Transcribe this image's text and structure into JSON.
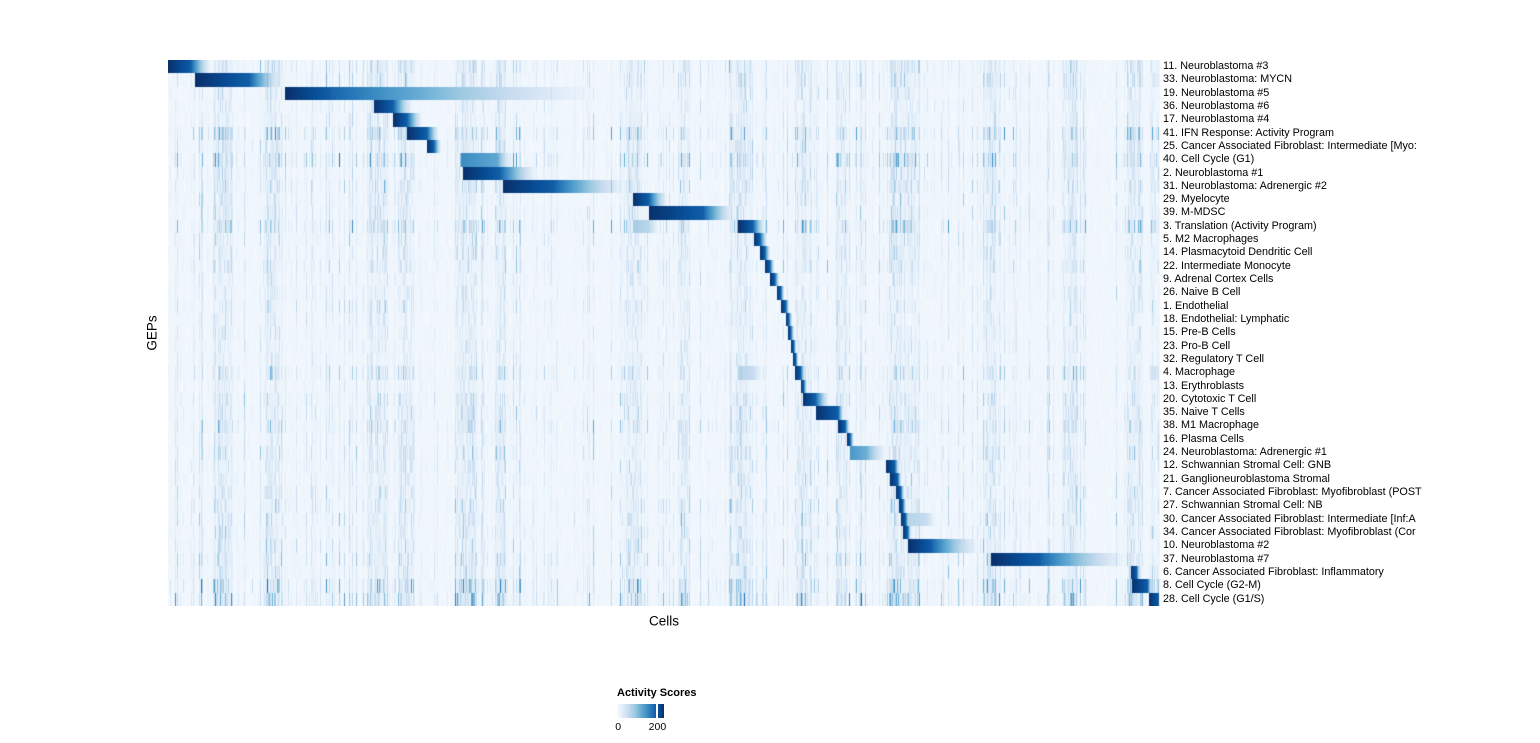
{
  "chart_data": {
    "type": "heatmap",
    "xlabel": "Cells",
    "ylabel": "GEPs",
    "legend": {
      "title": "Activity Scores",
      "min_label": "0",
      "tick_label": "200",
      "tick_pos": 0.86,
      "range_shown": [
        0,
        200
      ]
    },
    "color_low": "#F7FBFF",
    "color_high": "#08306B",
    "ramp": [
      "#F7FBFF",
      "#DEEBF7",
      "#C6DBEF",
      "#9ECAE1",
      "#6BAED6",
      "#4292C6",
      "#2171B5",
      "#08519C",
      "#08306B"
    ],
    "grid": false,
    "rows": [
      {
        "label": "11. Neuroblastoma #3",
        "core": [
          0.0,
          0.023
        ],
        "tail": 0.044,
        "intensity": 1,
        "noise": 0.3
      },
      {
        "label": "33. Neuroblastoma: MYCN",
        "core": [
          0.027,
          0.082
        ],
        "tail": 0.118,
        "intensity": 1,
        "noise": 0.3
      },
      {
        "label": "19. Neuroblastoma #5",
        "core": [
          0.118,
          0.164
        ],
        "tail": 0.455,
        "intensity": 1,
        "noise": 0.25
      },
      {
        "label": "36. Neuroblastoma #6",
        "core": [
          0.207,
          0.227
        ],
        "tail": 0.247,
        "intensity": 1,
        "noise": 0.22
      },
      {
        "label": "17. Neuroblastoma #4",
        "core": [
          0.227,
          0.241
        ],
        "tail": 0.257,
        "intensity": 1,
        "noise": 0.22
      },
      {
        "label": "41. IFN Response: Activity Program",
        "core": [
          0.241,
          0.261
        ],
        "tail": 0.274,
        "intensity": 1,
        "noise": 0.45
      },
      {
        "label": "25. Cancer Associated Fibroblast: Intermediate [Myo:",
        "core": [
          0.261,
          0.268
        ],
        "tail": 0.276,
        "intensity": 1,
        "noise": 0.28
      },
      {
        "label": "40. Cell Cycle (G1)",
        "core": [
          0.295,
          0.332
        ],
        "tail": 0.348,
        "intensity": 0.65,
        "noise": 0.5
      },
      {
        "label": "2. Neuroblastoma #1",
        "core": [
          0.297,
          0.335
        ],
        "tail": 0.375,
        "intensity": 1,
        "noise": 0.28
      },
      {
        "label": "31. Neuroblastoma: Adrenergic #2",
        "core": [
          0.338,
          0.39
        ],
        "tail": 0.469,
        "intensity": 1,
        "noise": 0.33
      },
      {
        "label": "29. Myelocyte",
        "core": [
          0.469,
          0.485
        ],
        "tail": 0.505,
        "intensity": 1,
        "noise": 0.25
      },
      {
        "label": "39. M-MDSC",
        "core": [
          0.485,
          0.54
        ],
        "tail": 0.574,
        "intensity": 1,
        "noise": 0.28
      },
      {
        "label": "3. Translation (Activity Program)",
        "core": [
          0.575,
          0.59
        ],
        "tail": 0.603,
        "intensity": 1,
        "noise": 0.45,
        "secondary": [
          0.469,
          0.485,
          0.35
        ]
      },
      {
        "label": "5. M2 Macrophages",
        "core": [
          0.591,
          0.597
        ],
        "tail": 0.605,
        "intensity": 1,
        "noise": 0.25
      },
      {
        "label": "14. Plasmacytoid Dendritic Cell",
        "core": [
          0.597,
          0.602
        ],
        "tail": 0.608,
        "intensity": 1,
        "noise": 0.25
      },
      {
        "label": "22. Intermediate Monocyte",
        "core": [
          0.602,
          0.607
        ],
        "tail": 0.612,
        "intensity": 1,
        "noise": 0.28
      },
      {
        "label": "9. Adrenal Cortex Cells",
        "core": [
          0.607,
          0.612
        ],
        "tail": 0.617,
        "intensity": 1,
        "noise": 0.2
      },
      {
        "label": "26. Naive B Cell",
        "core": [
          0.614,
          0.618
        ],
        "tail": 0.622,
        "intensity": 1,
        "noise": 0.2
      },
      {
        "label": "1. Endothelial",
        "core": [
          0.618,
          0.623
        ],
        "tail": 0.627,
        "intensity": 1,
        "noise": 0.24
      },
      {
        "label": "18. Endothelial: Lymphatic",
        "core": [
          0.623,
          0.626
        ],
        "tail": 0.63,
        "intensity": 1,
        "noise": 0.2
      },
      {
        "label": "15. Pre-B Cells",
        "core": [
          0.625,
          0.628
        ],
        "tail": 0.632,
        "intensity": 1,
        "noise": 0.2
      },
      {
        "label": "23. Pro-B Cell",
        "core": [
          0.628,
          0.631
        ],
        "tail": 0.634,
        "intensity": 1,
        "noise": 0.2
      },
      {
        "label": "32. Regulatory T Cell",
        "core": [
          0.63,
          0.633
        ],
        "tail": 0.636,
        "intensity": 1,
        "noise": 0.2
      },
      {
        "label": "4. Macrophage",
        "core": [
          0.632,
          0.638
        ],
        "tail": 0.643,
        "intensity": 1,
        "noise": 0.33,
        "secondary": [
          0.575,
          0.59,
          0.3
        ]
      },
      {
        "label": "13. Erythroblasts",
        "core": [
          0.638,
          0.641
        ],
        "tail": 0.645,
        "intensity": 1,
        "noise": 0.2
      },
      {
        "label": "20. Cytotoxic T Cell",
        "core": [
          0.64,
          0.653
        ],
        "tail": 0.668,
        "intensity": 1,
        "noise": 0.3
      },
      {
        "label": "35. Naive T Cells",
        "core": [
          0.653,
          0.676
        ],
        "tail": 0.682,
        "intensity": 1,
        "noise": 0.28
      },
      {
        "label": "38. M1 Macrophage",
        "core": [
          0.676,
          0.683
        ],
        "tail": 0.688,
        "intensity": 1,
        "noise": 0.33
      },
      {
        "label": "16. Plasma Cells",
        "core": [
          0.685,
          0.688
        ],
        "tail": 0.692,
        "intensity": 1,
        "noise": 0.24
      },
      {
        "label": "24. Neuroblastoma: Adrenergic #1",
        "core": [
          0.688,
          0.705
        ],
        "tail": 0.727,
        "intensity": 0.6,
        "noise": 0.28
      },
      {
        "label": "12. Schwannian Stromal Cell: GNB",
        "core": [
          0.724,
          0.733
        ],
        "tail": 0.738,
        "intensity": 1,
        "noise": 0.25
      },
      {
        "label": "21. Ganglioneuroblastoma Stromal",
        "core": [
          0.728,
          0.736
        ],
        "tail": 0.74,
        "intensity": 1,
        "noise": 0.25
      },
      {
        "label": "7. Cancer Associated Fibroblast: Myofibroblast (POST",
        "core": [
          0.734,
          0.739
        ],
        "tail": 0.743,
        "intensity": 1,
        "noise": 0.25
      },
      {
        "label": "27. Schwannian Stromal Cell: NB",
        "core": [
          0.737,
          0.741
        ],
        "tail": 0.745,
        "intensity": 1,
        "noise": 0.3
      },
      {
        "label": "30. Cancer Associated Fibroblast: Intermediate [Inf:A",
        "core": [
          0.739,
          0.744
        ],
        "tail": 0.748,
        "intensity": 1,
        "noise": 0.3,
        "secondary": [
          0.746,
          0.765,
          0.3
        ]
      },
      {
        "label": "34. Cancer Associated Fibroblast: Myofibroblast (Cor",
        "core": [
          0.741,
          0.746
        ],
        "tail": 0.75,
        "intensity": 1,
        "noise": 0.25
      },
      {
        "label": "10. Neuroblastoma #2",
        "core": [
          0.746,
          0.77
        ],
        "tail": 0.822,
        "intensity": 1,
        "noise": 0.28
      },
      {
        "label": "37. Neuroblastoma #7",
        "core": [
          0.83,
          0.88
        ],
        "tail": 0.974,
        "intensity": 1,
        "noise": 0.33
      },
      {
        "label": "6. Cancer Associated Fibroblast: Inflammatory",
        "core": [
          0.971,
          0.977
        ],
        "tail": 0.981,
        "intensity": 1,
        "noise": 0.28
      },
      {
        "label": "8. Cell Cycle (G2-M)",
        "core": [
          0.972,
          0.988
        ],
        "tail": 0.993,
        "intensity": 1,
        "noise": 0.5
      },
      {
        "label": "28. Cell Cycle (G1/S)",
        "core": [
          0.989,
          1.0
        ],
        "tail": 1.0,
        "intensity": 1,
        "noise": 0.55
      }
    ],
    "noise_bands": [
      [
        0.055,
        0.01
      ],
      [
        0.105,
        0.008
      ],
      [
        0.21,
        0.01
      ],
      [
        0.24,
        0.008
      ],
      [
        0.3,
        0.01
      ],
      [
        0.335,
        0.006
      ],
      [
        0.47,
        0.008
      ],
      [
        0.52,
        0.006
      ],
      [
        0.578,
        0.01
      ],
      [
        0.64,
        0.008
      ],
      [
        0.68,
        0.006
      ],
      [
        0.735,
        0.008
      ],
      [
        0.75,
        0.008
      ],
      [
        0.83,
        0.006
      ],
      [
        0.91,
        0.008
      ],
      [
        0.975,
        0.008
      ],
      [
        0.995,
        0.005
      ]
    ]
  }
}
